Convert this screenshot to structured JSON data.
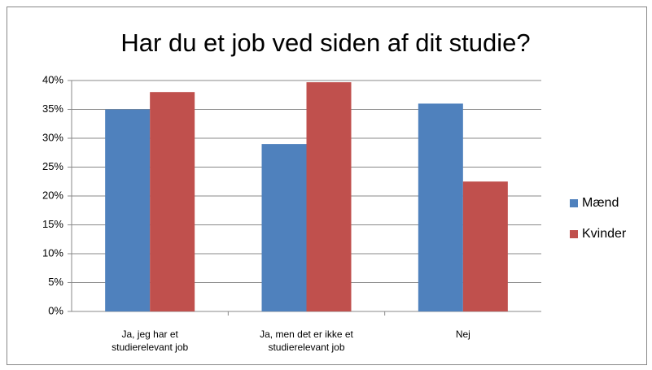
{
  "chart_data": {
    "type": "bar",
    "title": "Har du et job ved siden af dit studie?",
    "categories": [
      "Ja, jeg har et studierelevant job",
      "Ja, men det er ikke et studierelevant job",
      "Nej"
    ],
    "series": [
      {
        "name": "Mænd",
        "color": "#4f81bd",
        "values": [
          35,
          29,
          36
        ]
      },
      {
        "name": "Kvinder",
        "color": "#c0504d",
        "values": [
          38,
          39.7,
          22.5
        ]
      }
    ],
    "ylim": [
      0,
      40
    ],
    "yticks": [
      {
        "value": 0,
        "label": "0%"
      },
      {
        "value": 5,
        "label": "5%"
      },
      {
        "value": 10,
        "label": "10%"
      },
      {
        "value": 15,
        "label": "15%"
      },
      {
        "value": 20,
        "label": "20%"
      },
      {
        "value": 25,
        "label": "25%"
      },
      {
        "value": 30,
        "label": "30%"
      },
      {
        "value": 35,
        "label": "35%"
      },
      {
        "value": 40,
        "label": "40%"
      }
    ],
    "grid": true,
    "legend": "right"
  }
}
